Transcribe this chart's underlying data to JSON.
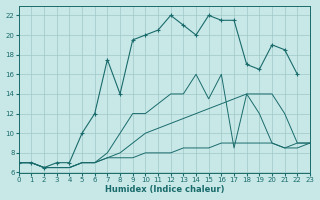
{
  "xlabel": "Humidex (Indice chaleur)",
  "bg_color": "#c8e8e8",
  "grid_color": "#a0c8c8",
  "line_color": "#1a6b6b",
  "xlim": [
    0,
    23
  ],
  "ylim": [
    6,
    23
  ],
  "xticks": [
    0,
    1,
    2,
    3,
    4,
    5,
    6,
    7,
    8,
    9,
    10,
    11,
    12,
    13,
    14,
    15,
    16,
    17,
    18,
    19,
    20,
    21,
    22,
    23
  ],
  "yticks": [
    6,
    8,
    10,
    12,
    14,
    16,
    18,
    20,
    22
  ],
  "line_straight_x": [
    0,
    1,
    2,
    3,
    4,
    5,
    6,
    7,
    8,
    9,
    10,
    11,
    12,
    13,
    14,
    15,
    16,
    17,
    18,
    19,
    20,
    21,
    22,
    23
  ],
  "line_straight_y": [
    7,
    7,
    6.5,
    6.5,
    6.5,
    7,
    7,
    7.5,
    7.5,
    7.5,
    8,
    8,
    8,
    8.5,
    8.5,
    8.5,
    9,
    9,
    9,
    9,
    9,
    8.5,
    9,
    9
  ],
  "line_med_x": [
    0,
    1,
    2,
    3,
    4,
    5,
    6,
    7,
    8,
    9,
    10,
    11,
    12,
    13,
    14,
    15,
    16,
    17,
    18,
    19,
    20,
    21,
    22,
    23
  ],
  "line_med_y": [
    7,
    7,
    6.5,
    6.5,
    6.5,
    7,
    7,
    7.5,
    8,
    9,
    10,
    10.5,
    11,
    11.5,
    12,
    12.5,
    13,
    13.5,
    14,
    14,
    14,
    12,
    9,
    9
  ],
  "line_curve_x": [
    0,
    1,
    2,
    3,
    4,
    5,
    6,
    7,
    8,
    9,
    10,
    11,
    12,
    13,
    14,
    15,
    16,
    17,
    18,
    19,
    20,
    21,
    22,
    23
  ],
  "line_curve_y": [
    7,
    7,
    6.5,
    6.5,
    6.5,
    7,
    7,
    8,
    10,
    12,
    12,
    13,
    14,
    14,
    16,
    13.5,
    16,
    8.5,
    14,
    12,
    9,
    8.5,
    8.5,
    9
  ],
  "line_top_x": [
    0,
    1,
    2,
    3,
    4,
    5,
    6,
    7,
    8,
    9,
    10,
    11,
    12,
    13,
    14,
    15,
    16,
    17,
    18,
    19,
    20,
    21,
    22
  ],
  "line_top_y": [
    7,
    7,
    6.5,
    7,
    7,
    10,
    12,
    17.5,
    14,
    19.5,
    20,
    20.5,
    22,
    21,
    20,
    22,
    21.5,
    21.5,
    17,
    16.5,
    19,
    18.5,
    16
  ]
}
